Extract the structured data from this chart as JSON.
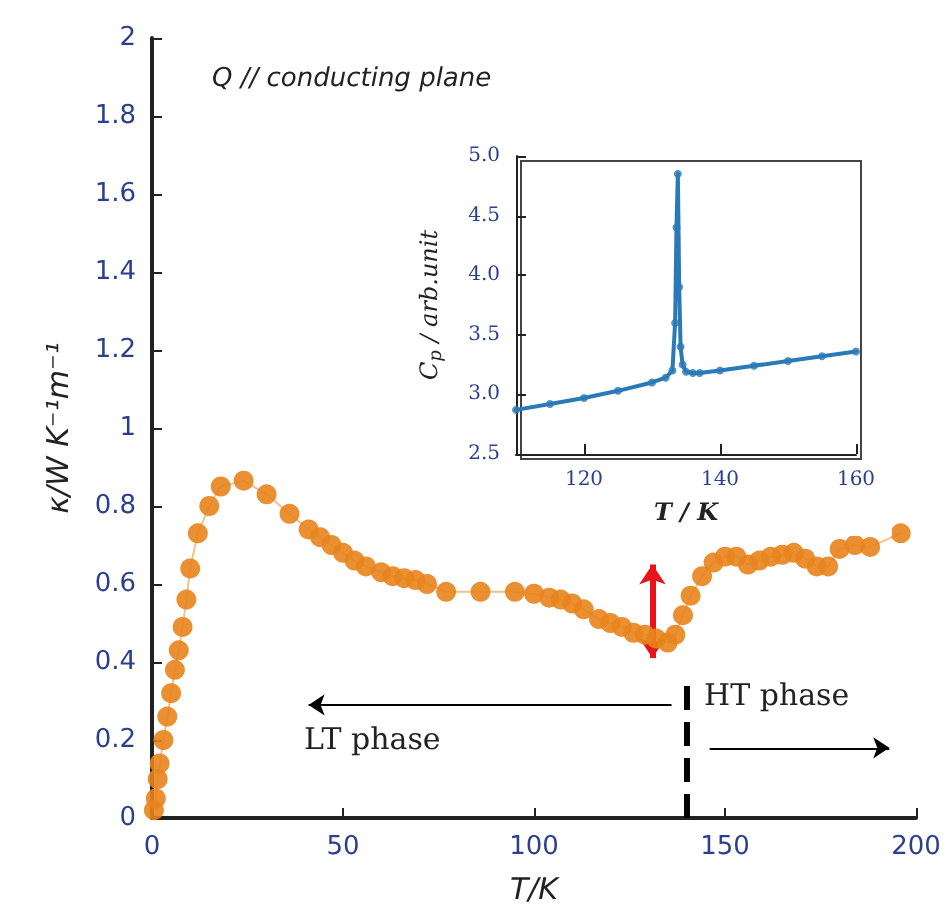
{
  "chart_data": [
    {
      "type": "line",
      "xlabel": "T/K",
      "ylabel": "κ/W K⁻¹m⁻¹",
      "annotations": [
        "Q // conducting plane",
        "LT phase",
        "HT phase"
      ],
      "xlim": [
        0,
        200
      ],
      "xticks": [
        0,
        50,
        100,
        150,
        200
      ],
      "ylim": [
        0,
        2
      ],
      "yticks": [
        0,
        0.2,
        0.4,
        0.6,
        0.8,
        1,
        1.2,
        1.4,
        1.6,
        1.8,
        2
      ],
      "grid": false,
      "marker": "circle",
      "line_style": "solid",
      "ref_lines": [
        {
          "axis": "x",
          "value": 140,
          "line_style": "dashed",
          "color": "#000000"
        }
      ],
      "series": [
        {
          "color": "#e8841c",
          "x": [
            0.5,
            1,
            1.5,
            2,
            3,
            4,
            5,
            6,
            7,
            8,
            9,
            10,
            12,
            15,
            18,
            24,
            30,
            36,
            41,
            44,
            47,
            50,
            53,
            56,
            60,
            63,
            66,
            69,
            72,
            77,
            86,
            95,
            100,
            104,
            107,
            110,
            113,
            117,
            120,
            123,
            126,
            129,
            132,
            135,
            137,
            139,
            141,
            144,
            147,
            150,
            153,
            156,
            159,
            162,
            165,
            168,
            171,
            174,
            177,
            180,
            184,
            188,
            196
          ],
          "values": [
            0.02,
            0.05,
            0.1,
            0.14,
            0.2,
            0.26,
            0.32,
            0.38,
            0.43,
            0.49,
            0.56,
            0.64,
            0.73,
            0.8,
            0.85,
            0.865,
            0.83,
            0.78,
            0.74,
            0.72,
            0.7,
            0.68,
            0.66,
            0.645,
            0.63,
            0.62,
            0.615,
            0.61,
            0.6,
            0.58,
            0.58,
            0.58,
            0.575,
            0.565,
            0.56,
            0.55,
            0.535,
            0.51,
            0.5,
            0.49,
            0.475,
            0.47,
            0.46,
            0.45,
            0.47,
            0.52,
            0.57,
            0.62,
            0.655,
            0.67,
            0.67,
            0.65,
            0.66,
            0.67,
            0.675,
            0.68,
            0.665,
            0.645,
            0.645,
            0.69,
            0.7,
            0.695,
            0.73
          ]
        }
      ]
    },
    {
      "type": "line",
      "xlabel": "T / K",
      "ylabel": "C$_{p}$ / arb.unit",
      "xlim": [
        110,
        160
      ],
      "xticks": [
        120,
        140,
        160
      ],
      "ylim": [
        2.5,
        5
      ],
      "yticks": [
        {
          "value": 2.5,
          "label": "2.5"
        },
        {
          "value": 3,
          "label": "3.0"
        },
        {
          "value": 3.5,
          "label": "3.5"
        },
        {
          "value": 4,
          "label": "4.0"
        },
        {
          "value": 4.5,
          "label": "4.5"
        },
        {
          "value": 5,
          "label": "5.0"
        }
      ],
      "grid": false,
      "marker": "circle",
      "line_style": "solid",
      "series": [
        {
          "color": "#2a7ab8",
          "x": [
            110,
            115,
            120,
            125,
            130,
            132,
            133,
            133.4,
            133.6,
            133.8,
            134,
            134.2,
            134.5,
            135,
            136,
            137,
            140,
            145,
            150,
            155,
            160
          ],
          "values": [
            2.87,
            2.92,
            2.97,
            3.03,
            3.1,
            3.14,
            3.2,
            3.6,
            4.4,
            4.85,
            3.9,
            3.4,
            3.25,
            3.19,
            3.18,
            3.18,
            3.2,
            3.24,
            3.28,
            3.32,
            3.36
          ]
        }
      ]
    }
  ]
}
